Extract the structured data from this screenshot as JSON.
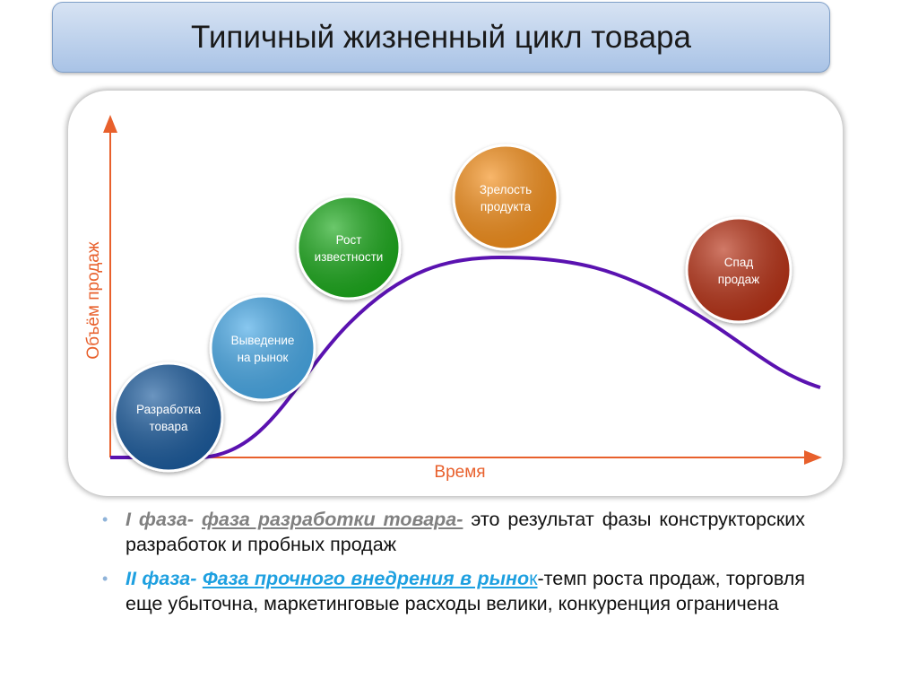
{
  "title": "Типичный жизненный цикл товара",
  "diagram": {
    "y_axis_label": "Объём продаж",
    "x_axis_label": "Время",
    "axis_color": "#e8602c",
    "curve_color": "#5a12b0",
    "stages": [
      {
        "line1": "Разработка",
        "line2": "товара",
        "color": "#1f5b9e"
      },
      {
        "line1": "Выведение",
        "line2": "на рынок",
        "color": "#4aaae8"
      },
      {
        "line1": "Рост",
        "line2": "известности",
        "color": "#1faa1f"
      },
      {
        "line1": "Зрелость",
        "line2": "продукта",
        "color": "#f5901a"
      },
      {
        "line1": "Спад",
        "line2": "продаж",
        "color": "#b83214"
      }
    ]
  },
  "bullets": [
    {
      "phase": "I фаза-",
      "phase_name": "фаза разработки товара-",
      "text": " это результат фазы конструкторских разработок и пробных продаж"
    },
    {
      "phase": "II фаза-",
      "phase_name": "Фаза прочного внедрения в рыно",
      "link_tail": "к",
      "text": "-темп роста продаж, торговля еще убыточна, маркетинговые расходы велики, конкуренция ограничена"
    }
  ]
}
